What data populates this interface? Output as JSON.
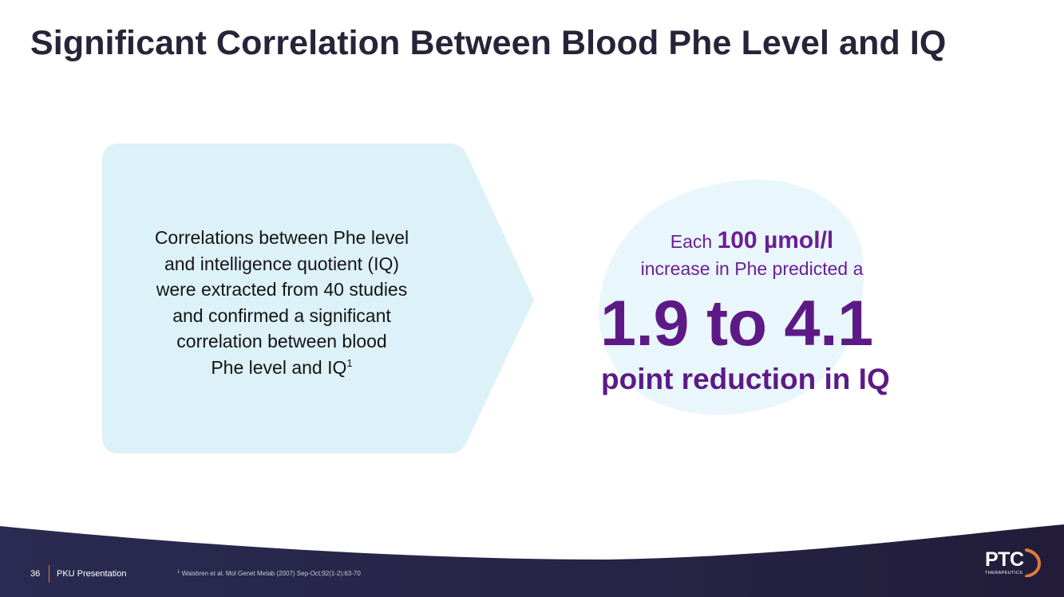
{
  "title": "Significant Correlation Between Blood Phe Level and IQ",
  "arrow_box": {
    "lines": [
      "Correlations between Phe level",
      "and intelligence quotient (IQ)",
      "were extracted from 40 studies",
      "and confirmed a significant",
      "correlation between blood"
    ],
    "last_line": "Phe level and IQ",
    "superscript": "1"
  },
  "stat": {
    "prefix": "Each",
    "unit_value": "100 µmol/l",
    "line2": "increase in Phe predicted a",
    "range": "1.9 to 4.1",
    "caption": "point reduction in IQ"
  },
  "footer": {
    "page_number": "36",
    "presentation_title": "PKU Presentation",
    "reference_marker": "1",
    "reference": "Waisbren et al. Mol Genet Metab (2007) Sep-Oct;92(1-2):63-70"
  },
  "logo": {
    "name": "PTC",
    "tagline": "THERAPEUTICS"
  },
  "colors": {
    "title": "#27243a",
    "arrow_fill": "#dcf1f8",
    "blob_fill": "#e9f6fb",
    "stat_purple": "#5d1a87",
    "footer_navy": "#272446",
    "divider_orange": "#e07a3a"
  }
}
